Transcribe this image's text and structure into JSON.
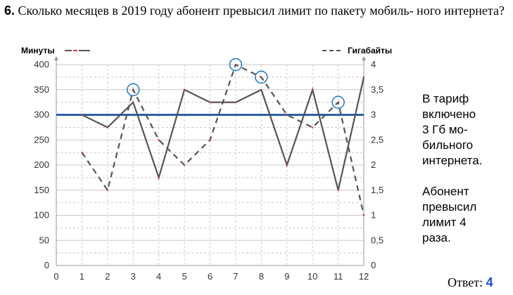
{
  "question": {
    "number": "6.",
    "text": "Сколько месяцев в 2019 году абонент превысил лимит по пакету мобиль-\nного интернета?"
  },
  "chart_data": {
    "type": "line",
    "x": [
      1,
      2,
      3,
      4,
      5,
      6,
      7,
      8,
      9,
      10,
      11,
      12
    ],
    "xlim": [
      0,
      12
    ],
    "x_ticks": [
      "0",
      "1",
      "2",
      "3",
      "4",
      "5",
      "6",
      "7",
      "8",
      "9",
      "10",
      "11",
      "12"
    ],
    "y_left_ticks": [
      "0",
      "50",
      "100",
      "150",
      "200",
      "250",
      "300",
      "350",
      "400"
    ],
    "y_right_ticks": [
      "0",
      "0,5",
      "1",
      "1,5",
      "2",
      "2,5",
      "3",
      "3,5",
      "4"
    ],
    "ylim_left": [
      0,
      400
    ],
    "ylim_right": [
      0,
      4
    ],
    "grid": true,
    "series": [
      {
        "name": "Минуты",
        "axis": "left",
        "style": "solid",
        "color": "#555555",
        "values": [
          300,
          275,
          325,
          175,
          350,
          325,
          325,
          350,
          200,
          350,
          150,
          375
        ]
      },
      {
        "name": "Гигабайты",
        "axis": "right",
        "style": "dashed",
        "color": "#555555",
        "values": [
          2.25,
          1.5,
          3.5,
          2.5,
          2,
          2.5,
          4,
          3.75,
          3,
          2.75,
          3.25,
          1
        ]
      }
    ],
    "limit_line": {
      "value": 3,
      "axis": "right",
      "color": "#2e5fa8"
    },
    "highlighted_months": [
      3,
      7,
      8,
      11
    ],
    "highlight_color": "#1f77c4"
  },
  "note_tariff": "В тариф\nвключено\n3 Гб мо-\nбильного\nинтернета.",
  "note_exceed": "Абонент\nпревысил\nлимит 4\nраза.",
  "answer": {
    "label": "Ответ:",
    "value": "4"
  }
}
